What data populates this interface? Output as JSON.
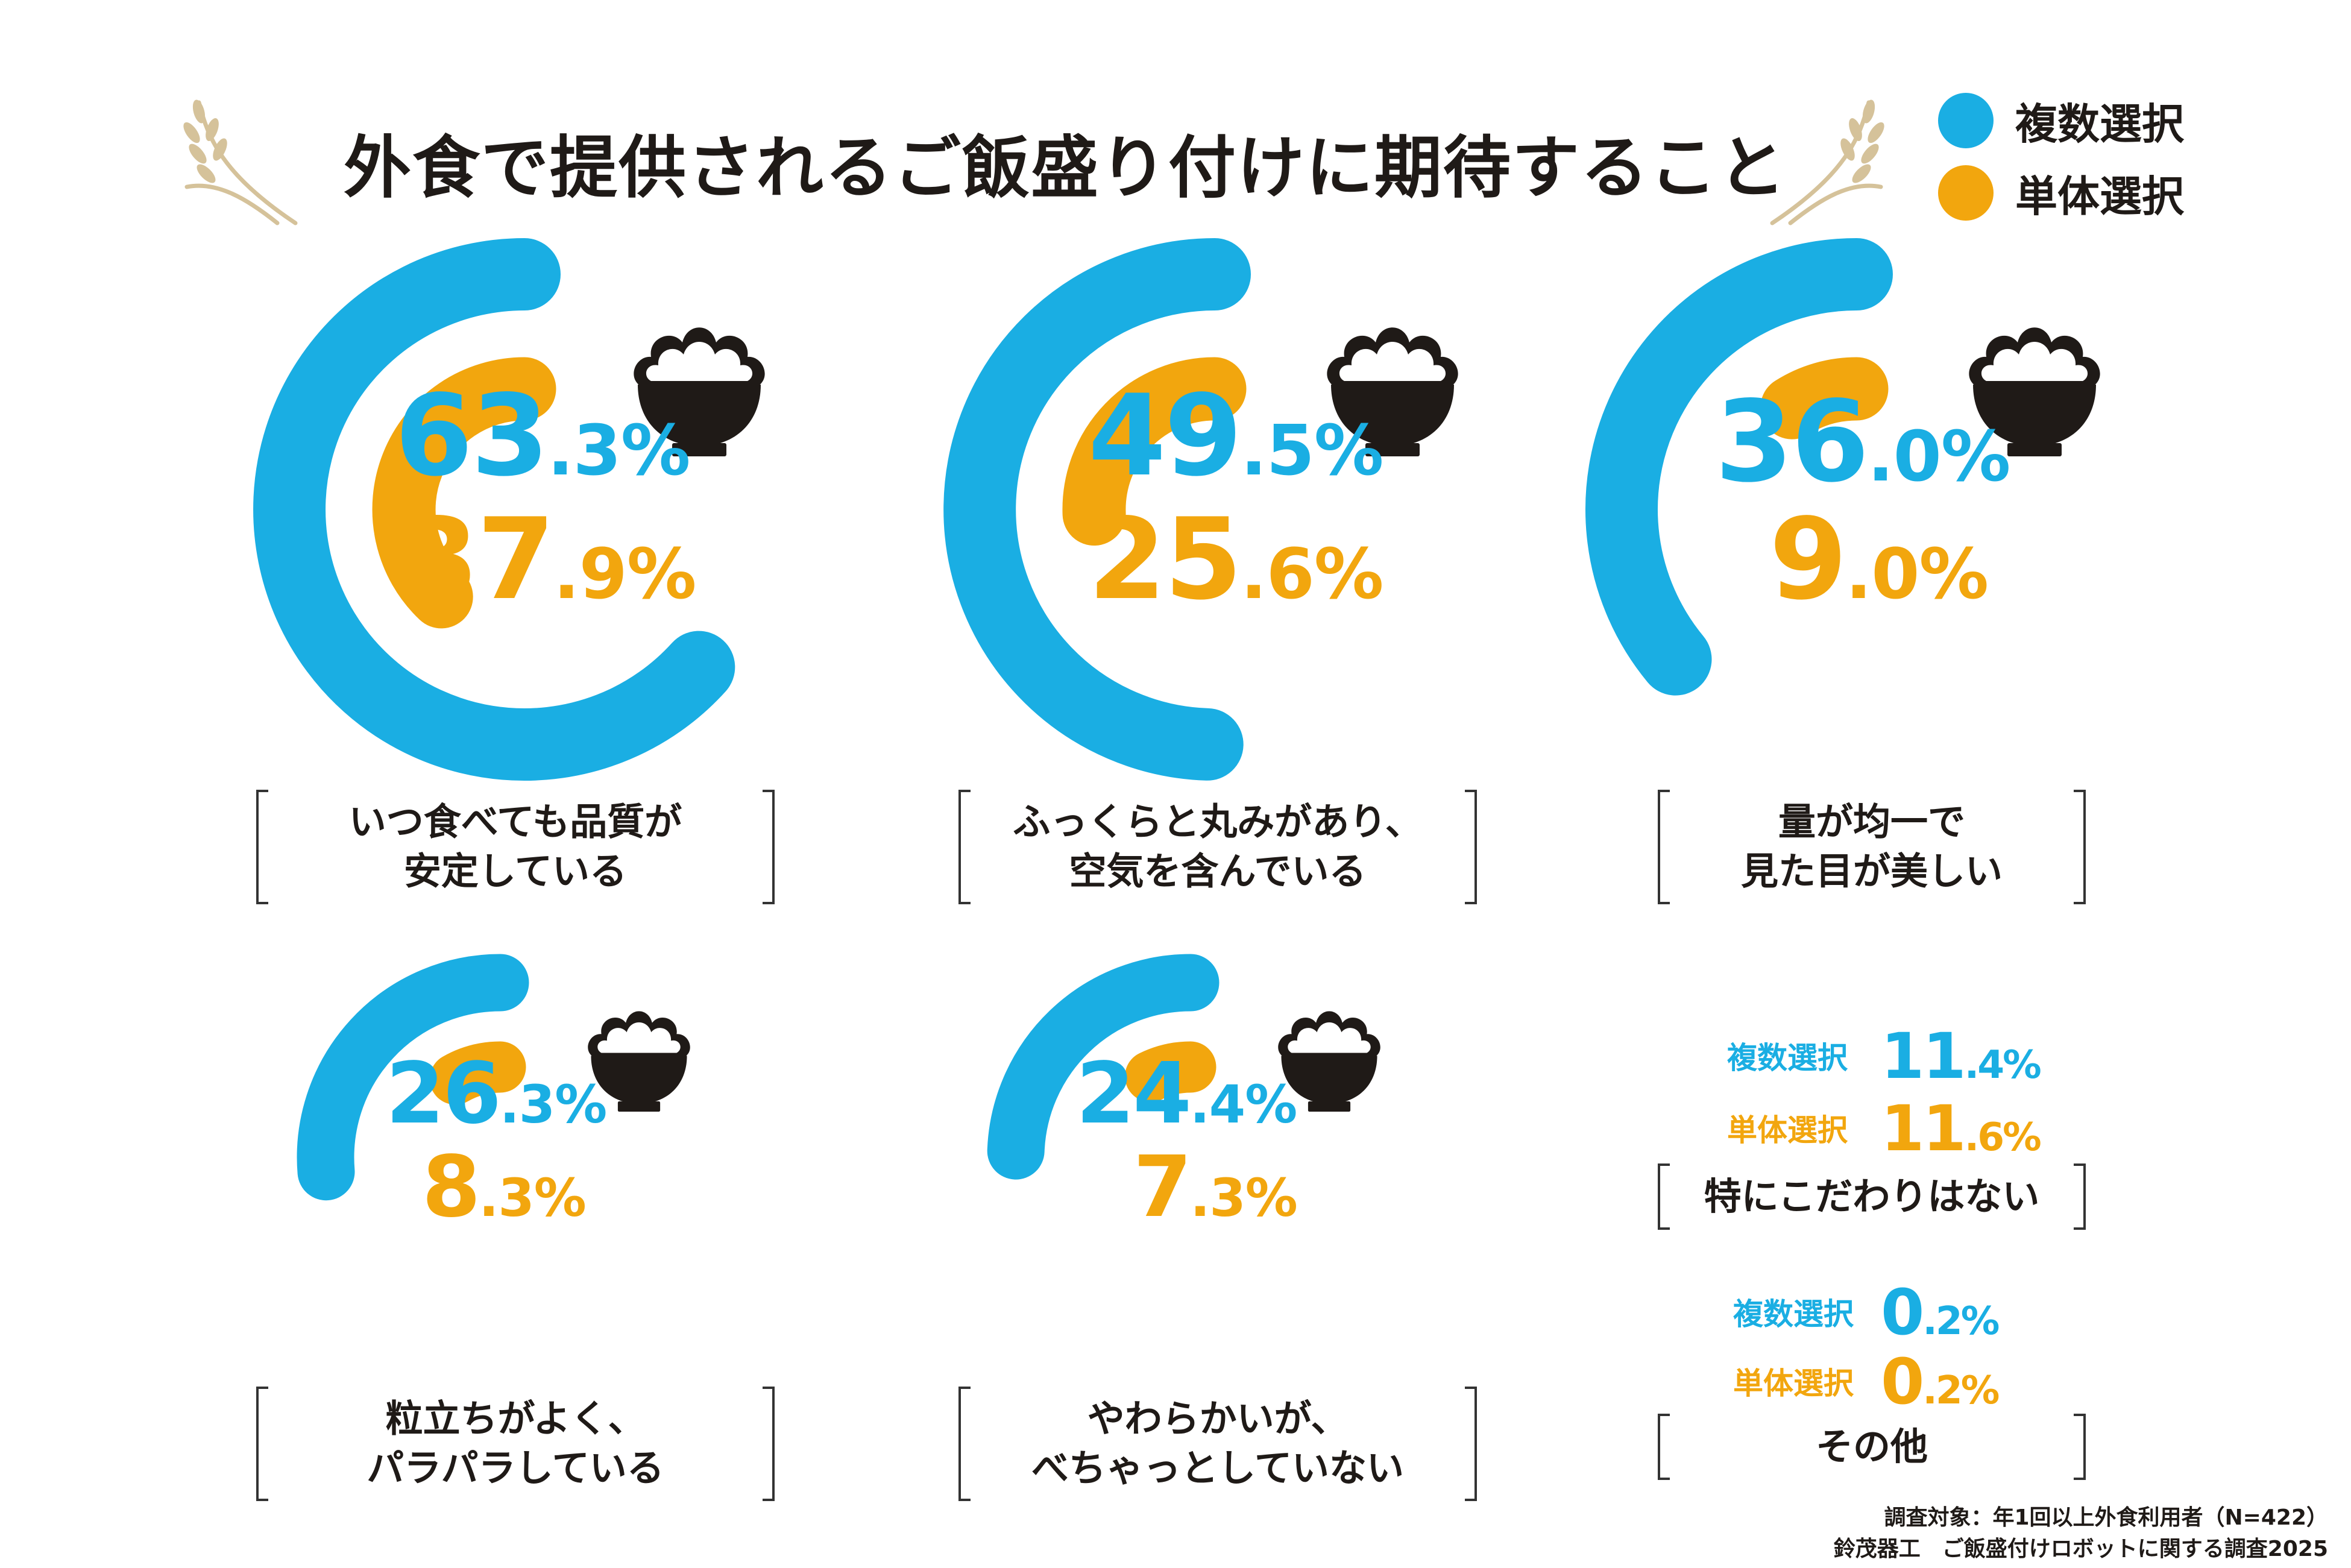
{
  "title": "外食で提供されるご飯盛り付けに期待すること",
  "colors": {
    "multi": "#1aaee3",
    "single": "#f2a60e",
    "text": "#1f1a17",
    "wheat": "#d5c29a"
  },
  "legend": {
    "multi": "複数選択",
    "single": "単体選択"
  },
  "chart_data": {
    "type": "radial-bar",
    "title": "外食で提供されるご飯盛り付けに期待すること",
    "series": [
      {
        "name": "複数選択",
        "values": [
          63.3,
          49.5,
          36.0,
          26.3,
          24.4,
          11.4,
          0.2
        ]
      },
      {
        "name": "単体選択",
        "values": [
          37.9,
          25.6,
          9.0,
          8.3,
          7.3,
          11.6,
          0.2
        ]
      }
    ],
    "categories": [
      "いつ食べても品質が安定している",
      "ふっくらと丸みがあり、空気を含んでいる",
      "量が均一で見た目が美しい",
      "粒立ちがよく、パラパラしている",
      "やわらかいが、べちゃっとしていない",
      "特にこだわりはない",
      "その他"
    ],
    "items": [
      {
        "label": [
          "いつ食べても品質が",
          "安定している"
        ],
        "multi": {
          "int": "63",
          "dec": ".3%",
          "value": 63.3
        },
        "single": {
          "int": "37",
          "dec": ".9%",
          "value": 37.9
        }
      },
      {
        "label": [
          "ふっくらと丸みがあり、",
          "空気を含んでいる"
        ],
        "multi": {
          "int": "49",
          "dec": ".5%",
          "value": 49.5
        },
        "single": {
          "int": "25",
          "dec": ".6%",
          "value": 25.6
        }
      },
      {
        "label": [
          "量が均一で",
          "見た目が美しい"
        ],
        "multi": {
          "int": "36",
          "dec": ".0%",
          "value": 36.0
        },
        "single": {
          "int": "9",
          "dec": ".0%",
          "value": 9.0
        }
      },
      {
        "label": [
          "粒立ちがよく、",
          "パラパラしている"
        ],
        "multi": {
          "int": "26",
          "dec": ".3%",
          "value": 26.3
        },
        "single": {
          "int": "8",
          "dec": ".3%",
          "value": 8.3
        }
      },
      {
        "label": [
          "やわらかいが、",
          "べちゃっとしていない"
        ],
        "multi": {
          "int": "24",
          "dec": ".4%",
          "value": 24.4
        },
        "single": {
          "int": "7",
          "dec": ".3%",
          "value": 7.3
        }
      }
    ],
    "text_items": [
      {
        "label": "特にこだわりはない",
        "multi_label": "複数選択",
        "multi_int": "11",
        "multi_dec": ".4%",
        "single_label": "単体選択",
        "single_int": "11",
        "single_dec": ".6%"
      },
      {
        "label": "その他",
        "multi_label": "複数選択",
        "multi_int": "0",
        "multi_dec": ".2%",
        "single_label": "単体選択",
        "single_int": "0",
        "single_dec": ".2%"
      }
    ]
  },
  "footer": {
    "line1": "調査対象：年1回以上外食利用者（N=422）",
    "line2": "鈴茂器工　ご飯盛付けロボットに関する調査2025"
  }
}
